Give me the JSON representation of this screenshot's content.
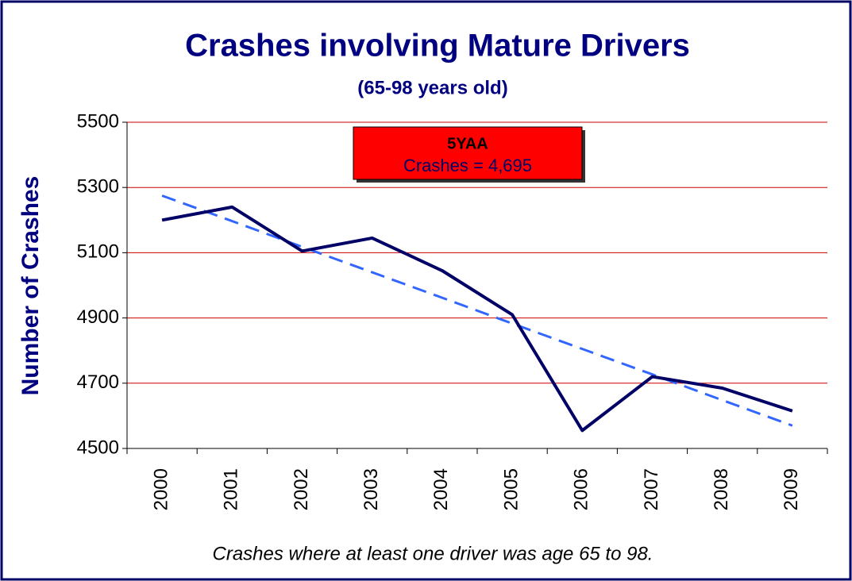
{
  "chart_data": {
    "type": "line",
    "title": "Crashes involving Mature Drivers",
    "subtitle": "(65-98 years old)",
    "y_label": "Number of Crashes",
    "footnote": "Crashes where at least one driver was age 65 to 98.",
    "annotation": {
      "title": "5YAA",
      "text": "Crashes = 4,695",
      "color": "#ff0000"
    },
    "categories": [
      "2000",
      "2001",
      "2002",
      "2003",
      "2004",
      "2005",
      "2006",
      "2007",
      "2008",
      "2009"
    ],
    "series": [
      {
        "color": "#000066",
        "values": [
          5200,
          5240,
          5105,
          5145,
          5045,
          4910,
          4555,
          4720,
          4685,
          4615
        ]
      },
      {
        "color": "#3366ff",
        "dashed": true,
        "values": [
          5275,
          5197,
          5118,
          5040,
          4962,
          4883,
          4805,
          4727,
          4648,
          4570
        ]
      }
    ],
    "ylim": [
      4500,
      5500
    ],
    "yticks": [
      4500,
      4700,
      4900,
      5100,
      5300,
      5500
    ],
    "grid": true,
    "grid_color": "#cc0000"
  }
}
